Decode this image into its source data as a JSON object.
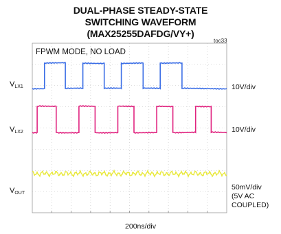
{
  "chart": {
    "title_lines": [
      "DUAL-PHASE STEADY-STATE",
      "SWITCHING WAVEFORM",
      "(MAX25255DAFDG/VY+)"
    ],
    "figure_tag": "toc33",
    "condition": "FPWM MODE, NO LOAD",
    "time_scale": "200ns/div"
  },
  "channels": {
    "vlx1": {
      "name_main": "V",
      "name_sub": "LX1",
      "scale": "10V/div",
      "color": "#3b6ee6"
    },
    "vlx2": {
      "name_main": "V",
      "name_sub": "LX2",
      "scale": "10V/div",
      "color": "#e0237f"
    },
    "vout": {
      "name_main": "V",
      "name_sub": "OUT",
      "scale_lines": [
        "50mV/div",
        "(5V AC",
        "COUPLED)"
      ],
      "color": "#e8e83a"
    }
  },
  "chart_data": {
    "type": "line",
    "grid": true,
    "x_divisions": 10,
    "y_divisions": 8,
    "series": [
      {
        "name": "VLX1",
        "segments": [
          [
            0.0,
            "low"
          ],
          [
            0.63,
            "high"
          ],
          [
            1.7,
            "low"
          ],
          [
            2.6,
            "high"
          ],
          [
            3.7,
            "low"
          ],
          [
            4.58,
            "high"
          ],
          [
            5.7,
            "low"
          ],
          [
            6.58,
            "high"
          ],
          [
            7.7,
            "low"
          ],
          [
            10.0,
            "low"
          ]
        ]
      },
      {
        "name": "VLX2",
        "segments": [
          [
            0.0,
            "low"
          ],
          [
            0.25,
            "high"
          ],
          [
            1.23,
            "low"
          ],
          [
            2.4,
            "high"
          ],
          [
            3.23,
            "low"
          ],
          [
            4.4,
            "high"
          ],
          [
            5.23,
            "low"
          ],
          [
            6.4,
            "high"
          ],
          [
            7.23,
            "low"
          ],
          [
            8.4,
            "high"
          ],
          [
            9.2,
            "low"
          ],
          [
            10.0,
            "low"
          ]
        ]
      },
      {
        "name": "VOUT",
        "description_only": "ripple"
      }
    ]
  }
}
